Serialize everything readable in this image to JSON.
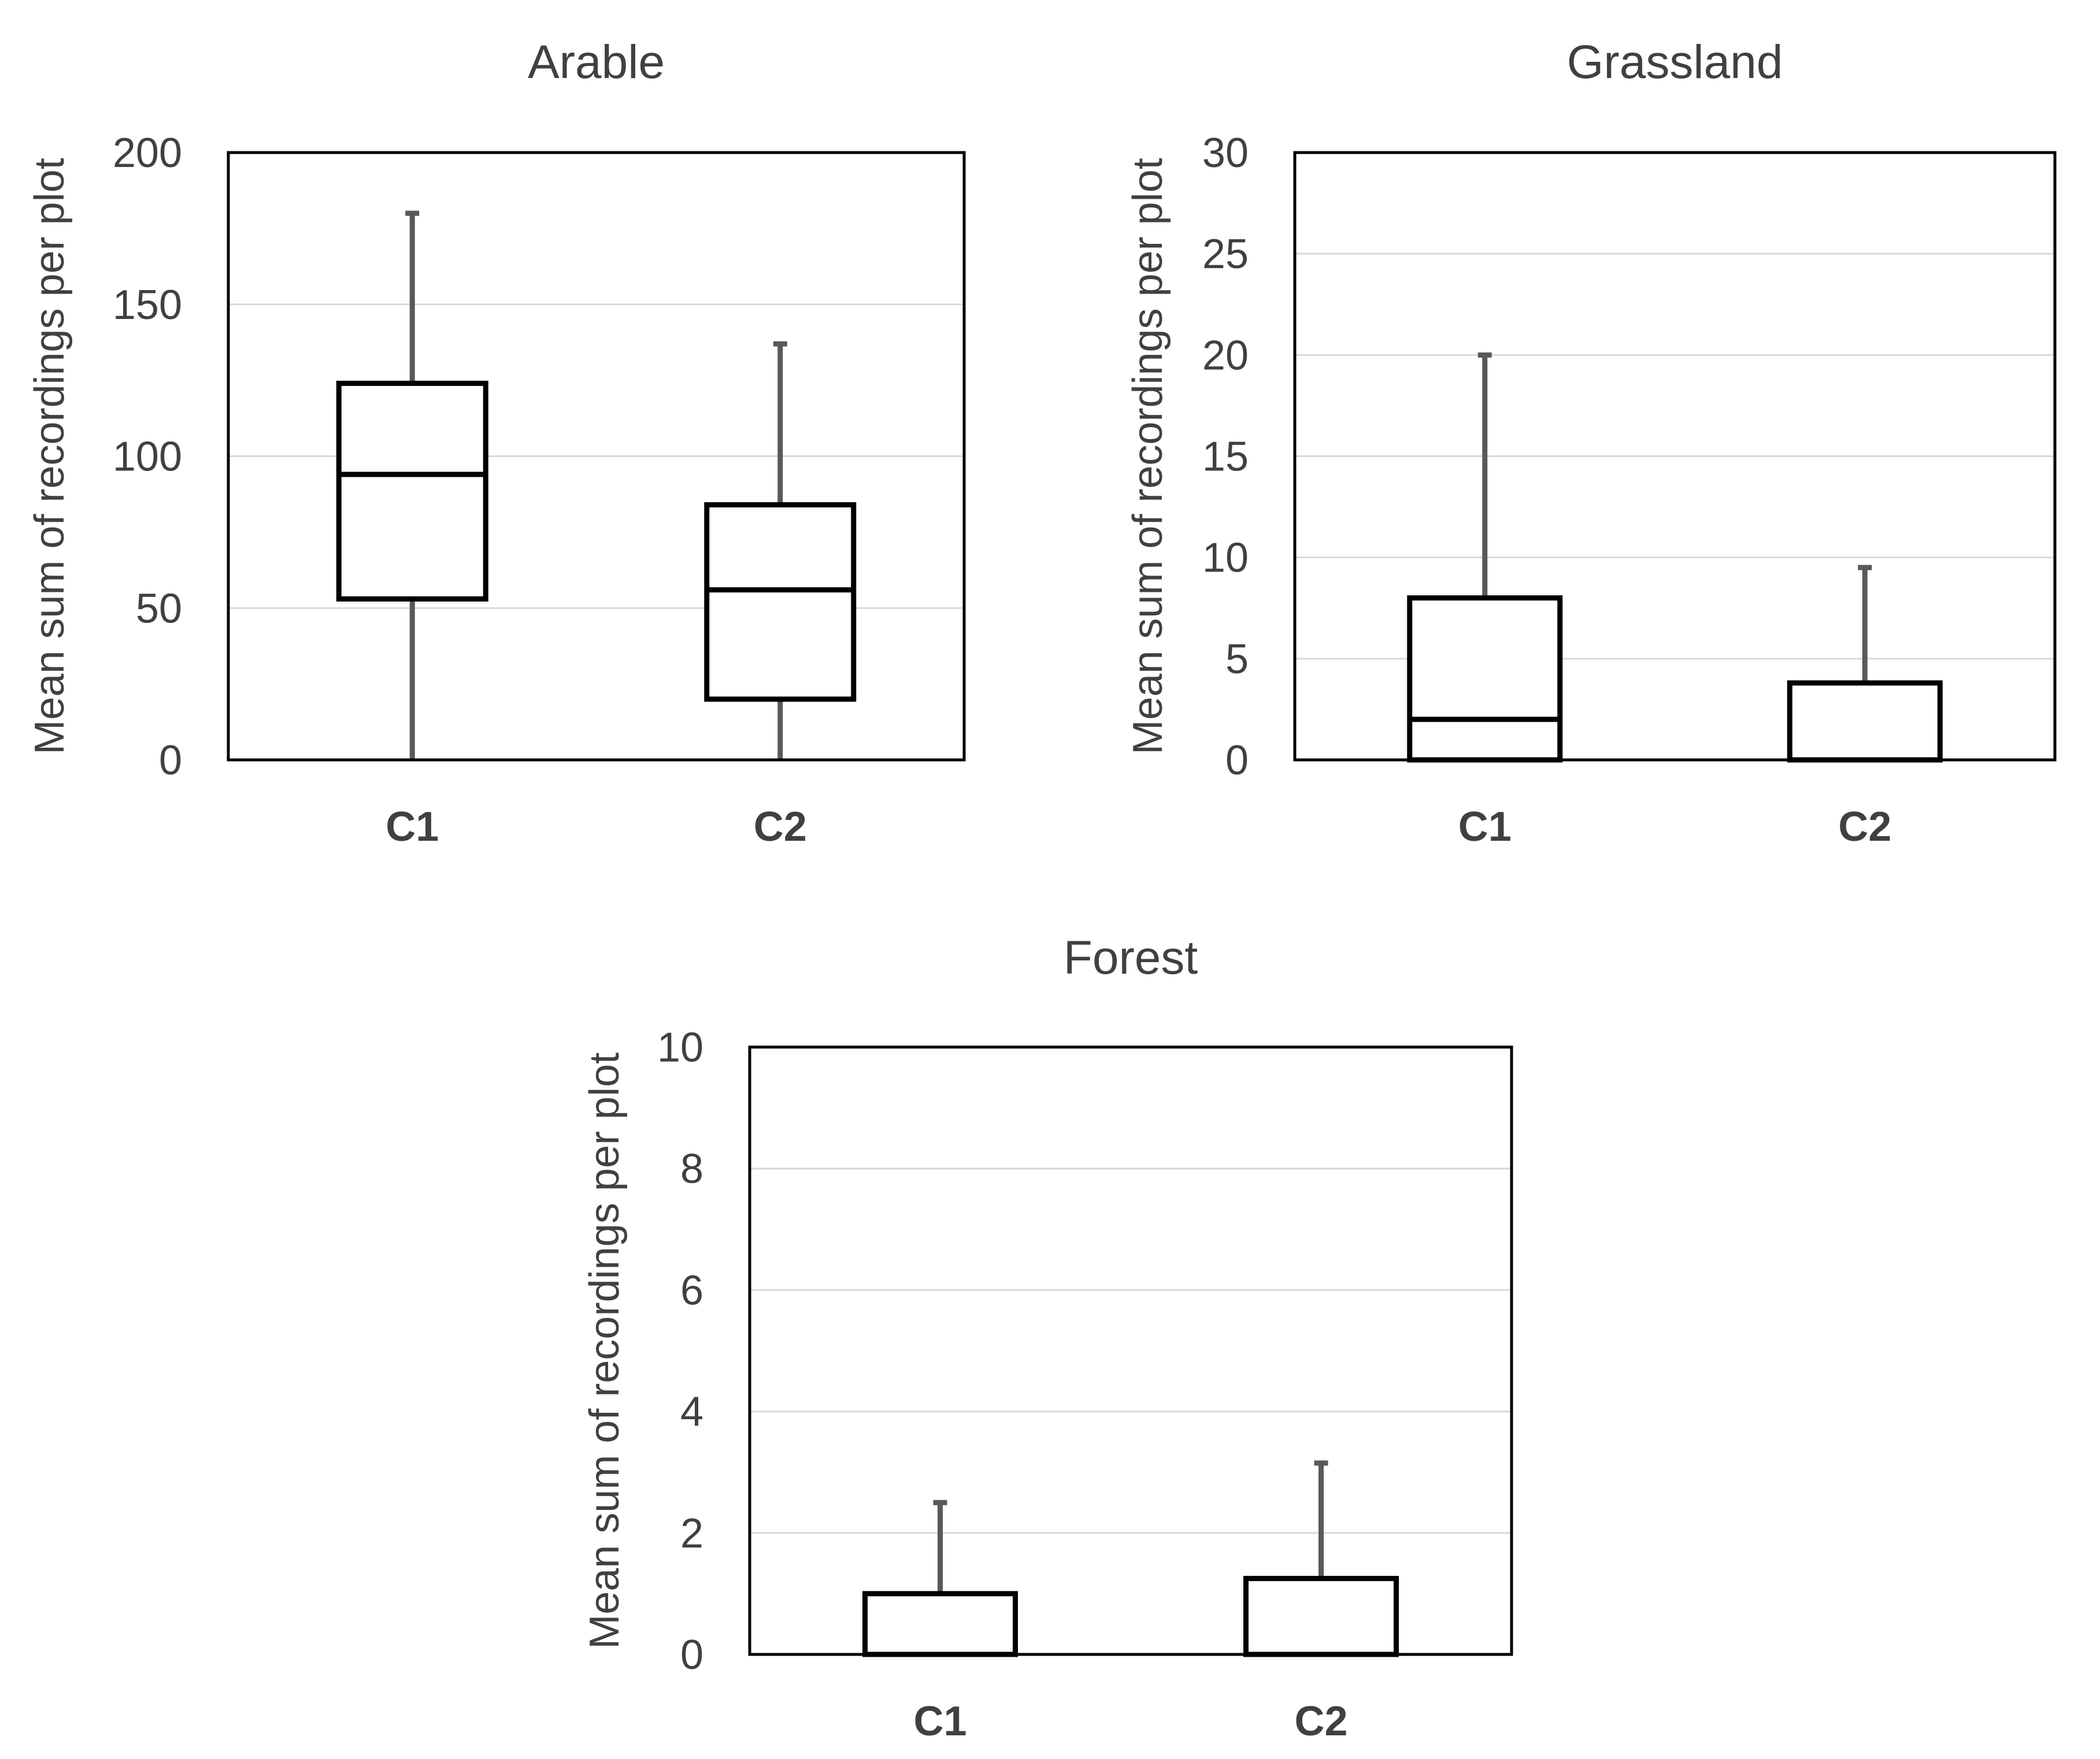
{
  "chart_data": [
    {
      "type": "box",
      "title": "Arable",
      "ylabel": "Mean sum of recordings per plot",
      "xlabel": "",
      "ylim": [
        0,
        200
      ],
      "yticks": [
        0,
        50,
        100,
        150,
        200
      ],
      "grid": true,
      "categories": [
        "C1",
        "C2"
      ],
      "boxes": [
        {
          "name": "C1",
          "min": 0,
          "q1": 53,
          "median": 94,
          "q3": 124,
          "max": 180
        },
        {
          "name": "C2",
          "min": 0,
          "q1": 20,
          "median": 56,
          "q3": 84,
          "max": 137
        }
      ]
    },
    {
      "type": "box",
      "title": "Grassland",
      "ylabel": "Mean sum of recordings per plot",
      "xlabel": "",
      "ylim": [
        0,
        30
      ],
      "yticks": [
        0,
        5,
        10,
        15,
        20,
        25,
        30
      ],
      "grid": true,
      "categories": [
        "C1",
        "C2"
      ],
      "boxes": [
        {
          "name": "C1",
          "min": 0,
          "q1": 0,
          "median": 2,
          "q3": 8,
          "max": 20
        },
        {
          "name": "C2",
          "min": 0,
          "q1": 0,
          "median": 0,
          "q3": 3.8,
          "max": 9.5
        }
      ]
    },
    {
      "type": "box",
      "title": "Forest",
      "ylabel": "Mean sum of recordings per plot",
      "xlabel": "",
      "ylim": [
        0,
        10
      ],
      "yticks": [
        0,
        2,
        4,
        6,
        8,
        10
      ],
      "grid": true,
      "categories": [
        "C1",
        "C2"
      ],
      "boxes": [
        {
          "name": "C1",
          "min": 0,
          "q1": 0,
          "median": 0,
          "q3": 1,
          "max": 2.5
        },
        {
          "name": "C2",
          "min": 0,
          "q1": 0,
          "median": 0,
          "q3": 1.25,
          "max": 3.15
        }
      ]
    }
  ],
  "colors": {
    "text": "#404040",
    "grid": "#d9d9d9",
    "box": "#000000",
    "whisker": "#595959"
  }
}
